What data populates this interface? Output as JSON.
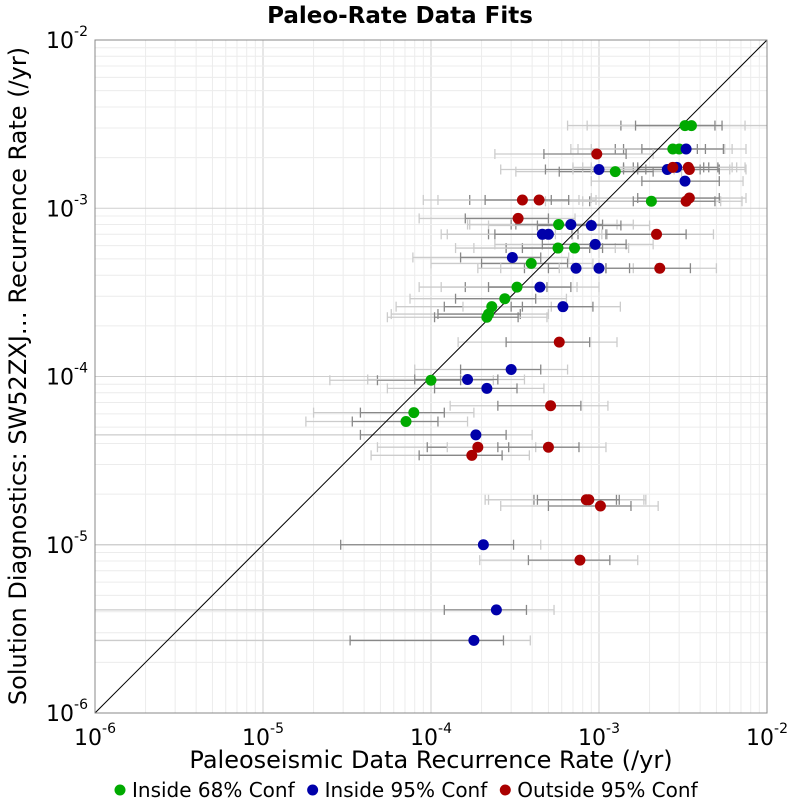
{
  "chart_data": {
    "type": "scatter",
    "title": "Paleo-Rate Data Fits",
    "xlabel": "Paleoseismic Data Recurrence Rate (/yr)",
    "ylabel": "Solution Diagnostics: SW52ZXJ… Recurrence Rate (/yr)",
    "x_scale": "log",
    "y_scale": "log",
    "xlim": [
      1e-06,
      0.01
    ],
    "ylim": [
      1e-06,
      0.01
    ],
    "x_ticks": [
      {
        "base": "10",
        "exp": "-6",
        "value": 1e-06
      },
      {
        "base": "10",
        "exp": "-5",
        "value": 1e-05
      },
      {
        "base": "10",
        "exp": "-4",
        "value": 0.0001
      },
      {
        "base": "10",
        "exp": "-3",
        "value": 0.001
      },
      {
        "base": "10",
        "exp": "-2",
        "value": 0.01
      }
    ],
    "y_ticks": [
      {
        "base": "10",
        "exp": "-6",
        "value": 1e-06
      },
      {
        "base": "10",
        "exp": "-5",
        "value": 1e-05
      },
      {
        "base": "10",
        "exp": "-4",
        "value": 0.0001
      },
      {
        "base": "10",
        "exp": "-3",
        "value": 0.001
      },
      {
        "base": "10",
        "exp": "-2",
        "value": 0.01
      }
    ],
    "grid": true,
    "reference_line": "y = x",
    "legend_position": "bottom",
    "series": [
      {
        "name": "Inside 68% Conf",
        "color": "#00aa00",
        "points": [
          {
            "x": 0.00325,
            "y": 0.0031,
            "x68": [
              0.00135,
              0.0049
            ],
            "x95": [
              0.00065,
              0.0074
            ]
          },
          {
            "x": 0.00355,
            "y": 0.0031,
            "x68": [
              0.00165,
              0.0054
            ],
            "x95": [
              0.00085,
              0.01
            ]
          },
          {
            "x": 0.00275,
            "y": 0.00225,
            "x68": [
              0.00125,
              0.00385
            ],
            "x95": [
              0.00068,
              0.0056
            ]
          },
          {
            "x": 0.003,
            "y": 0.00225,
            "x68": [
              0.0014,
              0.0043
            ],
            "x95": [
              0.00075,
              0.0062
            ]
          },
          {
            "x": 0.00125,
            "y": 0.00165,
            "x68": [
              0.00058,
              0.0021
            ],
            "x95": [
              0.00032,
              0.0031
            ]
          },
          {
            "x": 0.00205,
            "y": 0.0011,
            "x68": [
              0.00088,
              0.0033
            ],
            "x95": [
              0.00048,
              0.0053
            ]
          },
          {
            "x": 0.000575,
            "y": 0.0008,
            "x68": [
              0.0003,
              0.0009
            ],
            "x95": [
              0.00017,
              0.00128
            ]
          },
          {
            "x": 0.00057,
            "y": 0.00058,
            "x68": [
              0.00028,
              0.00088
            ],
            "x95": [
              0.00014,
              0.00125
            ]
          },
          {
            "x": 0.000715,
            "y": 0.00058,
            "x68": [
              0.00035,
              0.00105
            ],
            "x95": [
              0.00018,
              0.0015
            ]
          },
          {
            "x": 0.000395,
            "y": 0.00047,
            "x68": [
              0.0002,
              0.00065
            ],
            "x95": [
              0.0001,
              0.00092
            ]
          },
          {
            "x": 0.000325,
            "y": 0.00034,
            "x68": [
              0.00016,
              0.00049
            ],
            "x95": [
              8.5e-05,
              0.00074
            ]
          },
          {
            "x": 0.000275,
            "y": 0.00029,
            "x68": [
              0.00014,
              0.00042
            ],
            "x95": [
              7.5e-05,
              0.00064
            ]
          },
          {
            "x": 0.00023,
            "y": 0.00026,
            "x68": [
              0.00012,
              0.00035
            ],
            "x95": [
              6.2e-05,
              0.00052
            ]
          },
          {
            "x": 0.00022,
            "y": 0.000235,
            "x68": [
              0.00011,
              0.00034
            ],
            "x95": [
              5.8e-05,
              0.0005
            ]
          },
          {
            "x": 0.000215,
            "y": 0.000225,
            "x68": [
              0.000105,
              0.00033
            ],
            "x95": [
              5.5e-05,
              0.00049
            ]
          },
          {
            "x": 0.0001,
            "y": 9.5e-05,
            "x68": [
              4.8e-05,
              0.00015
            ],
            "x95": [
              2.5e-05,
              0.000235
            ]
          },
          {
            "x": 7.9e-05,
            "y": 6.1e-05,
            "x68": [
              3.8e-05,
              0.00012
            ],
            "x95": [
              2e-05,
              0.00018
            ]
          },
          {
            "x": 7.1e-05,
            "y": 5.4e-05,
            "x68": [
              3.4e-05,
              0.00011
            ],
            "x95": [
              1.8e-05,
              0.000165
            ]
          }
        ]
      },
      {
        "name": "Inside 95% Conf",
        "color": "#0000aa",
        "points": [
          {
            "x": 0.0033,
            "y": 0.00225,
            "x68": [
              0.0018,
              0.0055
            ],
            "x95": [
              0.0009,
              0.0075
            ]
          },
          {
            "x": 0.0029,
            "y": 0.00175,
            "x68": [
              0.0016,
              0.0045
            ],
            "x95": [
              0.0008,
              0.0066
            ]
          },
          {
            "x": 0.00255,
            "y": 0.0017,
            "x68": [
              0.0014,
              0.004
            ],
            "x95": [
              0.0007,
              0.006
            ]
          },
          {
            "x": 0.00325,
            "y": 0.00145,
            "x68": [
              0.0018,
              0.0052
            ],
            "x95": [
              0.0009,
              0.0072
            ]
          },
          {
            "x": 0.001,
            "y": 0.0017,
            "x68": [
              0.00048,
              0.0019
            ],
            "x95": [
              0.00026,
              0.0028
            ]
          },
          {
            "x": 0.00068,
            "y": 0.0008,
            "x68": [
              0.00032,
              0.00105
            ],
            "x95": [
              0.000165,
              0.0016
            ]
          },
          {
            "x": 0.0009,
            "y": 0.00079,
            "x68": [
              0.00043,
              0.00135
            ],
            "x95": [
              0.00022,
              0.002
            ]
          },
          {
            "x": 0.00046,
            "y": 0.0007,
            "x68": [
              0.00022,
              0.00069
            ],
            "x95": [
              0.000115,
              0.00104
            ]
          },
          {
            "x": 0.0005,
            "y": 0.0007,
            "x68": [
              0.00024,
              0.00075
            ],
            "x95": [
              0.000125,
              0.00112
            ]
          },
          {
            "x": 0.00095,
            "y": 0.00061,
            "x68": [
              0.00046,
              0.00145
            ],
            "x95": [
              0.00024,
              0.0021
            ]
          },
          {
            "x": 0.000305,
            "y": 0.00051,
            "x68": [
              0.00015,
              0.00045
            ],
            "x95": [
              7.8e-05,
              0.00066
            ]
          },
          {
            "x": 0.00073,
            "y": 0.00044,
            "x68": [
              0.00036,
              0.0011
            ],
            "x95": [
              0.00019,
              0.0016
            ]
          },
          {
            "x": 0.001,
            "y": 0.00044,
            "x68": [
              0.0005,
              0.00152
            ],
            "x95": [
              0.00026,
              0.0022
            ]
          },
          {
            "x": 0.000445,
            "y": 0.00034,
            "x68": [
              0.00022,
              0.00068
            ],
            "x95": [
              0.000115,
              0.001
            ]
          },
          {
            "x": 0.00061,
            "y": 0.00026,
            "x68": [
              0.0003,
              0.00092
            ],
            "x95": [
              0.000155,
              0.00134
            ]
          },
          {
            "x": 0.0003,
            "y": 0.00011,
            "x68": [
              0.00015,
              0.00045
            ],
            "x95": [
              8e-05,
              0.00065
            ]
          },
          {
            "x": 0.000165,
            "y": 9.6e-05,
            "x68": [
              8e-05,
              0.00025
            ],
            "x95": [
              4.2e-05,
              0.00036
            ]
          },
          {
            "x": 0.000215,
            "y": 8.5e-05,
            "x68": [
              0.000105,
              0.000325
            ],
            "x95": [
              5.5e-05,
              0.00047
            ]
          },
          {
            "x": 0.000185,
            "y": 4.5e-05,
            "x68": [
              3.8e-05,
              0.00028
            ],
            "x95": [
              1e-06,
              0.0004
            ]
          },
          {
            "x": 0.000205,
            "y": 1e-05,
            "x68": [
              2.9e-05,
              0.00031
            ],
            "x95": [
              1e-06,
              0.00045
            ]
          },
          {
            "x": 0.000245,
            "y": 4.1e-06,
            "x68": [
              0.00012,
              0.00037
            ],
            "x95": [
              1e-06,
              0.00054
            ]
          },
          {
            "x": 0.00018,
            "y": 2.7e-06,
            "x68": [
              3.3e-05,
              0.00027
            ],
            "x95": [
              1e-06,
              0.00039
            ]
          }
        ]
      },
      {
        "name": "Outside 95% Conf",
        "color": "#aa0000",
        "points": [
          {
            "x": 0.00097,
            "y": 0.0021,
            "x68": [
              0.00047,
              0.00145
            ],
            "x95": [
              0.00024,
              0.0021
            ]
          },
          {
            "x": 0.00275,
            "y": 0.00175,
            "x68": [
              0.0014,
              0.0042
            ],
            "x95": [
              0.0007,
              0.0062
            ]
          },
          {
            "x": 0.00345,
            "y": 0.0017,
            "x68": [
              0.0017,
              0.0052
            ],
            "x95": [
              0.0009,
              0.0075
            ]
          },
          {
            "x": 0.0034,
            "y": 0.00175,
            "x68": [
              0.0017,
              0.0051
            ],
            "x95": [
              0.0009,
              0.0074
            ]
          },
          {
            "x": 0.00345,
            "y": 0.00115,
            "x68": [
              0.0017,
              0.0052
            ],
            "x95": [
              0.0009,
              0.0075
            ]
          },
          {
            "x": 0.0033,
            "y": 0.0011,
            "x68": [
              0.0016,
              0.0049
            ],
            "x95": [
              0.0008,
              0.0071
            ]
          },
          {
            "x": 0.00035,
            "y": 0.00112,
            "x68": [
              0.00017,
              0.00052
            ],
            "x95": [
              9e-05,
              0.00076
            ]
          },
          {
            "x": 0.00044,
            "y": 0.00112,
            "x68": [
              0.00021,
              0.00066
            ],
            "x95": [
              0.00011,
              0.00096
            ]
          },
          {
            "x": 0.00033,
            "y": 0.00087,
            "x68": [
              0.00016,
              0.0005
            ],
            "x95": [
              8.5e-05,
              0.00072
            ]
          },
          {
            "x": 0.0022,
            "y": 0.0007,
            "x68": [
              0.0011,
              0.0033
            ],
            "x95": [
              0.00055,
              0.0048
            ]
          },
          {
            "x": 0.0023,
            "y": 0.00044,
            "x68": [
              0.0011,
              0.0035
            ],
            "x95": [
              0.00058,
              0.005
            ]
          },
          {
            "x": 0.00058,
            "y": 0.00016,
            "x68": [
              0.00028,
              0.00088
            ],
            "x95": [
              0.000145,
              0.00128
            ]
          },
          {
            "x": 0.000515,
            "y": 6.7e-05,
            "x68": [
              0.00025,
              0.00078
            ],
            "x95": [
              0.00013,
              0.00113
            ]
          },
          {
            "x": 0.00019,
            "y": 3.8e-05,
            "x68": [
              9.5e-05,
              0.00029
            ],
            "x95": [
              4.8e-05,
              0.00042
            ]
          },
          {
            "x": 0.000175,
            "y": 3.4e-05,
            "x68": [
              8.5e-05,
              0.000265
            ],
            "x95": [
              4.4e-05,
              0.000385
            ]
          },
          {
            "x": 0.0005,
            "y": 3.8e-05,
            "x68": [
              0.00025,
              0.00076
            ],
            "x95": [
              0.000125,
              0.0011
            ]
          },
          {
            "x": 0.00084,
            "y": 1.85e-05,
            "x68": [
              0.00041,
              0.00127
            ],
            "x95": [
              0.00021,
              0.00185
            ]
          },
          {
            "x": 0.00087,
            "y": 1.85e-05,
            "x68": [
              0.00043,
              0.00132
            ],
            "x95": [
              0.00022,
              0.0019
            ]
          },
          {
            "x": 0.00102,
            "y": 1.7e-05,
            "x68": [
              0.0005,
              0.00155
            ],
            "x95": [
              0.00026,
              0.00225
            ]
          },
          {
            "x": 0.00077,
            "y": 8.1e-06,
            "x68": [
              0.00038,
              0.00116
            ],
            "x95": [
              0.000195,
              0.0017
            ]
          }
        ]
      }
    ]
  }
}
